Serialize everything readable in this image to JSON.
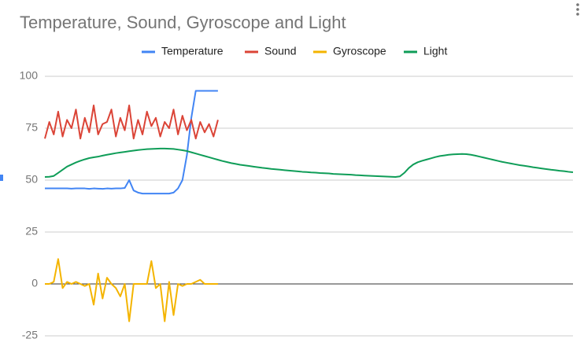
{
  "chart_data": {
    "type": "line",
    "title": "Temperature, Sound, Gyroscope and Light",
    "categories": [
      null,
      null,
      null,
      null,
      null,
      null,
      null,
      null,
      null,
      null,
      null,
      null,
      null,
      null,
      null,
      null,
      null,
      null,
      null,
      null,
      null,
      null,
      null,
      null,
      null,
      null,
      null,
      null,
      null,
      null,
      null,
      null,
      null,
      null,
      null,
      null,
      null,
      null,
      null,
      null,
      null,
      null,
      null,
      null,
      null,
      null,
      null,
      null,
      null,
      null,
      null,
      null,
      null,
      null,
      null,
      null,
      null,
      null,
      null,
      null,
      null,
      null,
      null,
      null,
      null,
      null,
      null,
      null,
      null,
      null,
      null,
      null,
      null,
      null,
      null,
      null,
      null,
      null,
      null,
      null,
      null,
      null,
      null,
      null,
      null,
      null,
      null,
      null,
      null,
      null,
      null,
      null,
      null,
      null,
      null,
      null,
      null,
      null,
      null,
      null,
      null,
      null,
      null,
      null,
      null,
      null,
      null,
      null,
      null,
      null,
      null,
      null,
      null,
      null,
      null,
      null,
      null,
      null,
      null,
      null
    ],
    "series": [
      {
        "name": "Temperature",
        "color": "#4285f4",
        "values": [
          46,
          46,
          46,
          46,
          46,
          46,
          45.9,
          46,
          46,
          46,
          45.8,
          46,
          45.9,
          45.8,
          46,
          45.9,
          46,
          46,
          46.2,
          50,
          45,
          44,
          43.5,
          43.5,
          43.5,
          43.5,
          43.5,
          43.5,
          43.5,
          44,
          46,
          50,
          62,
          80,
          93,
          93,
          93,
          93,
          93,
          93,
          null,
          null,
          null,
          null,
          null,
          null,
          null,
          null,
          null,
          null,
          null,
          null,
          null,
          null,
          null,
          null,
          null,
          null,
          null,
          null,
          null,
          null,
          null,
          null,
          null,
          null,
          null,
          null,
          null,
          null,
          null,
          null,
          null,
          null,
          null,
          null,
          null,
          null,
          null,
          null,
          null,
          null,
          null,
          null,
          null,
          null,
          null,
          null,
          null,
          null,
          null,
          null,
          null,
          null,
          null,
          null,
          null,
          null,
          null,
          null,
          null,
          null,
          null,
          null,
          null,
          null,
          null,
          null,
          null,
          null,
          null,
          null,
          null,
          null,
          null,
          null,
          null,
          null,
          null,
          null
        ]
      },
      {
        "name": "Sound",
        "color": "#db4437",
        "values": [
          70,
          78,
          72,
          83,
          71,
          79,
          75,
          84,
          70,
          80,
          73,
          86,
          72,
          77,
          78,
          84,
          71,
          80,
          74,
          86,
          70,
          79,
          72,
          83,
          76,
          80,
          71,
          78,
          75,
          84,
          72,
          81,
          74,
          79,
          70,
          78,
          73,
          77,
          71,
          79,
          null,
          null,
          null,
          null,
          null,
          null,
          null,
          null,
          null,
          null,
          null,
          null,
          null,
          null,
          null,
          null,
          null,
          null,
          null,
          null,
          null,
          null,
          null,
          null,
          null,
          null,
          null,
          null,
          null,
          null,
          null,
          null,
          null,
          null,
          null,
          null,
          null,
          null,
          null,
          null,
          null,
          null,
          null,
          null,
          null,
          null,
          null,
          null,
          null,
          null,
          null,
          null,
          null,
          null,
          null,
          null,
          null,
          null,
          null,
          null,
          null,
          null,
          null,
          null,
          null,
          null,
          null,
          null,
          null,
          null,
          null,
          null,
          null,
          null,
          null,
          null,
          null,
          null,
          null,
          null
        ]
      },
      {
        "name": "Gyroscope",
        "color": "#f4b400",
        "values": [
          0,
          0,
          1,
          12,
          -2,
          1,
          0,
          1,
          0,
          -1,
          0,
          -10,
          5,
          -7,
          3,
          0,
          -2,
          -6,
          0,
          -18,
          0,
          0,
          0,
          0,
          11,
          -2,
          0,
          -18,
          1,
          -15,
          0,
          -1,
          0,
          0,
          1,
          2,
          0,
          0,
          0,
          0,
          null,
          null,
          null,
          null,
          null,
          null,
          null,
          null,
          null,
          null,
          null,
          null,
          null,
          null,
          null,
          null,
          null,
          null,
          null,
          null,
          null,
          null,
          null,
          null,
          null,
          null,
          null,
          null,
          null,
          null,
          null,
          null,
          null,
          null,
          null,
          null,
          null,
          null,
          null,
          null,
          null,
          null,
          null,
          null,
          null,
          null,
          null,
          null,
          null,
          null,
          null,
          null,
          null,
          null,
          null,
          null,
          null,
          null,
          null,
          null,
          null,
          null,
          null,
          null,
          null,
          null,
          null,
          null,
          null,
          null,
          null,
          null,
          null,
          null,
          null,
          null,
          null,
          null,
          null,
          null
        ]
      },
      {
        "name": "Light",
        "color": "#0f9d58",
        "values": [
          51.5,
          51.6,
          52,
          53.5,
          55,
          56.5,
          57.5,
          58.5,
          59.3,
          60,
          60.6,
          61,
          61.3,
          61.8,
          62.2,
          62.6,
          63,
          63.3,
          63.6,
          63.9,
          64.2,
          64.5,
          64.7,
          64.9,
          65,
          65.1,
          65.2,
          65.2,
          65.1,
          65,
          64.7,
          64.4,
          64,
          63.4,
          62.8,
          62.2,
          61.6,
          61,
          60.4,
          59.8,
          59.2,
          58.7,
          58.2,
          57.8,
          57.4,
          57.1,
          56.8,
          56.5,
          56.2,
          55.9,
          55.7,
          55.4,
          55.2,
          55,
          54.8,
          54.6,
          54.4,
          54.2,
          54,
          53.9,
          53.7,
          53.6,
          53.4,
          53.3,
          53.2,
          53,
          52.9,
          52.8,
          52.7,
          52.6,
          52.4,
          52.3,
          52.2,
          52.1,
          52,
          51.9,
          51.8,
          51.7,
          51.6,
          51.5,
          51.8,
          53.5,
          55.8,
          57.5,
          58.6,
          59.3,
          59.9,
          60.5,
          61.1,
          61.6,
          61.9,
          62.2,
          62.4,
          62.5,
          62.6,
          62.5,
          62.2,
          61.8,
          61.3,
          60.8,
          60.3,
          59.8,
          59.3,
          58.8,
          58.4,
          58,
          57.6,
          57.2,
          56.9,
          56.6,
          56.2,
          55.9,
          55.6,
          55.3,
          55,
          54.8,
          54.5,
          54.3,
          54,
          53.8
        ]
      }
    ],
    "ylim": [
      -30,
      100
    ],
    "yticks": [
      -25,
      0,
      25,
      50,
      75,
      100
    ],
    "grid": true,
    "legend": "top"
  }
}
